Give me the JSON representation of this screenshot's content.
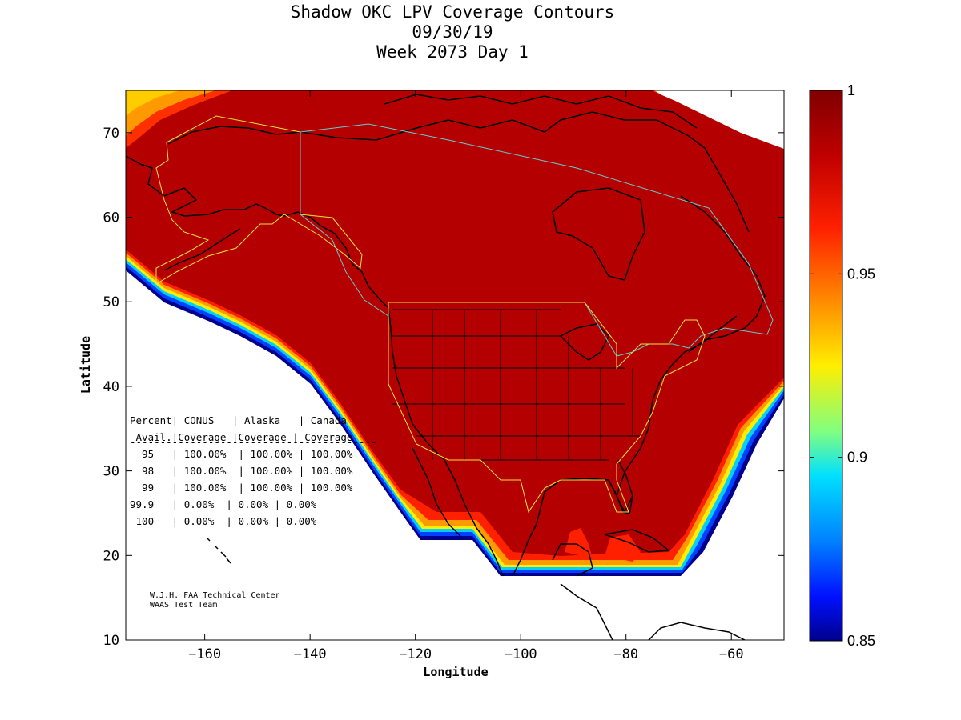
{
  "chart_data": {
    "type": "heatmap",
    "title_lines": [
      "Shadow OKC LPV Coverage Contours",
      "09/30/19",
      "Week 2073 Day 1"
    ],
    "xlabel": "Longitude",
    "ylabel": "Latitude",
    "xlim": [
      -175,
      -50
    ],
    "ylim": [
      10,
      75
    ],
    "x_ticks": [
      -160,
      -140,
      -120,
      -100,
      -80,
      -60
    ],
    "y_ticks": [
      10,
      20,
      30,
      40,
      50,
      60,
      70
    ],
    "colorbar": {
      "min": 0.85,
      "max": 1,
      "ticks": [
        "1",
        "0.95",
        "0.9",
        "0.85"
      ],
      "tick_values": [
        1,
        0.95,
        0.9,
        0.85
      ],
      "colormap": "jet"
    },
    "coverage_table": {
      "header_row1": "Percent| CONUS   | Alaska   | Canada",
      "header_row2": " Avail.|Coverage |Coverage | Coverage",
      "separator": "-----------------------------------------",
      "rows": [
        "  95   | 100.00%  | 100.00% | 100.00%",
        "  98   | 100.00%  | 100.00% | 100.00%",
        "  99   | 100.00%  | 100.00% | 100.00%",
        "99.9   | 0.00%  | 0.00% | 0.00%",
        " 100   | 0.00%  | 0.00% | 0.00%"
      ]
    },
    "credits": [
      "W.J.H. FAA Technical Center",
      "WAAS Test Team"
    ],
    "colors": {
      "dark_red": "#b40000",
      "red": "#ff1e00",
      "orange": "#ff9900",
      "yellow": "#ffee00",
      "cyan": "#00e5ff",
      "blue": "#0040ff",
      "navy": "#00008c"
    }
  }
}
